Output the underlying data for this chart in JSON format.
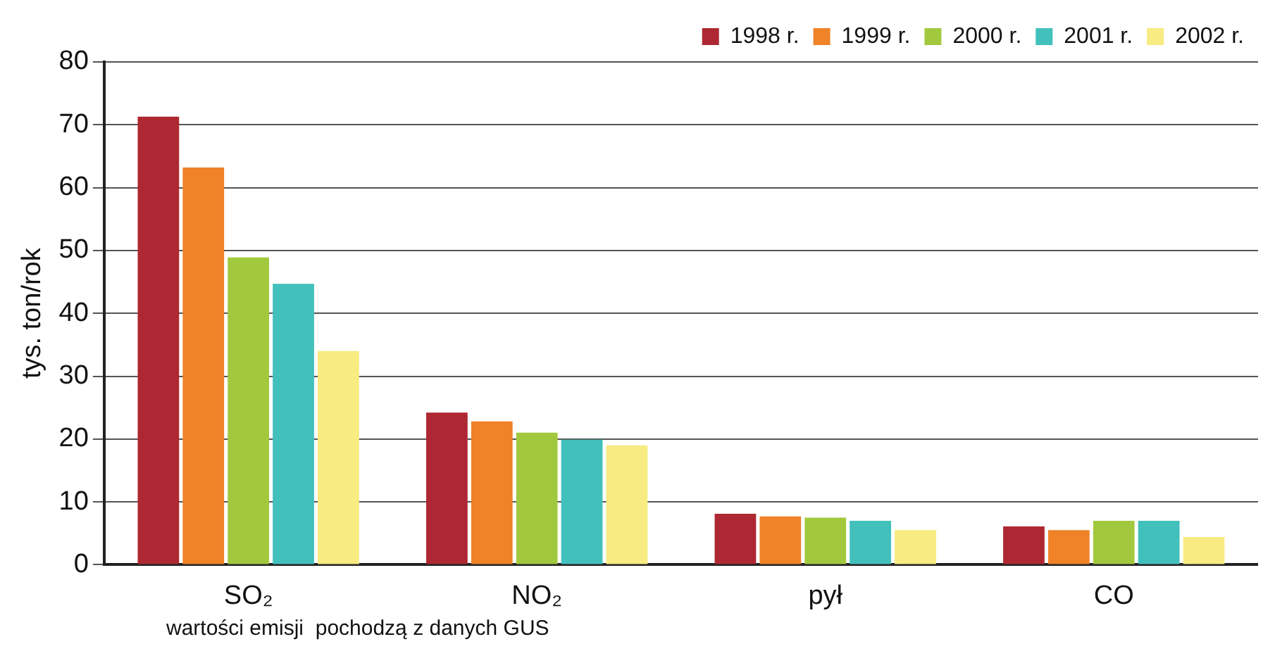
{
  "chart_data": {
    "type": "bar",
    "ylabel": "tys. ton/rok",
    "categories": [
      "SO₂",
      "NO₂",
      "pył",
      "CO"
    ],
    "series": [
      {
        "name": "1998 r.",
        "color": "#ad2832",
        "values": [
          71.3,
          24.2,
          8.1,
          6.1
        ]
      },
      {
        "name": "1999 r.",
        "color": "#f08228",
        "values": [
          63.2,
          22.8,
          7.7,
          5.5
        ]
      },
      {
        "name": "2000 r.",
        "color": "#a2c93e",
        "values": [
          48.9,
          21.0,
          7.5,
          7.0
        ]
      },
      {
        "name": "2001 r.",
        "color": "#42c0bc",
        "values": [
          44.7,
          19.9,
          7.0,
          7.0
        ]
      },
      {
        "name": "2002 r.",
        "color": "#f7eb82",
        "values": [
          34.0,
          19.0,
          5.5,
          4.4
        ]
      }
    ],
    "ylim": [
      0,
      80
    ],
    "yticks": [
      0,
      10,
      20,
      30,
      40,
      50,
      60,
      70,
      80
    ],
    "grid": "y",
    "legend": "top right",
    "annotations": [
      "wartości emisji  pochodzą z danych GUS"
    ]
  }
}
